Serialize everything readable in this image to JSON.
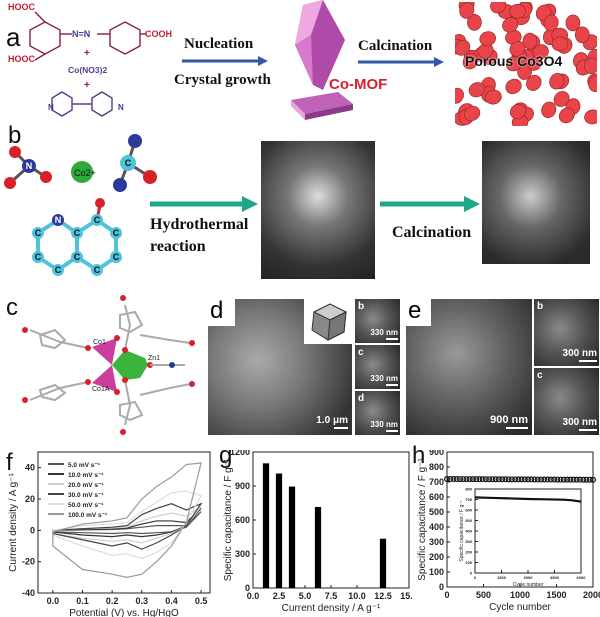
{
  "panels": {
    "a": {
      "label": "a",
      "reactant1_labels": [
        "HOOC",
        "HOOC",
        "COOH",
        "N=N"
      ],
      "plus": "+",
      "reactant2": "Co(NO3)2",
      "reactant3_atoms": [
        "N",
        "N"
      ],
      "step1_top": "Nucleation",
      "step1_bottom": "Crystal growth",
      "intermediate": "Co-MOF",
      "step2": "Calcination",
      "product": "Porous Co3O4",
      "colors": {
        "arrow": "#2e5aa8",
        "text_red": "#d8202a",
        "crystal": "#b04aa8",
        "particles": "#e8444a"
      }
    },
    "b": {
      "label": "b",
      "ion": "Co2+",
      "atom": "C",
      "atom_n": "N",
      "atom_o": "O",
      "step1_line1": "Hydrothermal",
      "step1_line2": "reaction",
      "step2": "Calcination",
      "colors": {
        "arrow": "#1ea88a",
        "carbon": "#4fc3dc",
        "nitrogen": "#2b3a9a",
        "oxygen": "#d8202a",
        "cobalt": "#2faa3a"
      }
    },
    "c": {
      "label": "c",
      "atoms": [
        "Co1",
        "Zn1",
        "Co1A"
      ],
      "colors": {
        "co": "#cc3d9e",
        "zn": "#3ab43a",
        "o": "#d8202a"
      }
    },
    "d": {
      "label": "d",
      "scale_main": "1.0 μm",
      "insets": [
        {
          "label": "b",
          "scale": "330 nm"
        },
        {
          "label": "c",
          "scale": "330 nm"
        },
        {
          "label": "d",
          "scale": "330 nm"
        }
      ]
    },
    "e": {
      "label": "e",
      "scale_main": "900 nm",
      "insets": [
        {
          "label": "b",
          "scale": "300 nm"
        },
        {
          "label": "c",
          "scale": "300 nm"
        }
      ]
    },
    "f": {
      "label": "f"
    },
    "g": {
      "label": "g"
    },
    "h": {
      "label": "h"
    }
  },
  "chart_data": [
    {
      "panel": "f",
      "type": "line",
      "xlabel": "Potential (V) vs. Hg/HgO",
      "ylabel": "Current density / A g⁻¹",
      "xlim": [
        -0.05,
        0.53
      ],
      "ylim": [
        -40,
        50
      ],
      "xticks": [
        "0.0",
        "0.1",
        "0.2",
        "0.3",
        "0.4",
        "0.5"
      ],
      "yticks": [
        "-40",
        "-20",
        "0",
        "20",
        "40"
      ],
      "legend_position": "top-left",
      "x": [
        0,
        0.1,
        0.2,
        0.25,
        0.3,
        0.35,
        0.4,
        0.45,
        0.5
      ],
      "series": [
        {
          "name": "5.0  mV s⁻¹",
          "color": "#555555",
          "anodic": [
            0,
            0.3,
            0.5,
            1,
            2,
            3,
            3,
            3,
            12
          ],
          "cathodic": [
            -1,
            -1.5,
            -2,
            -1.5,
            -2,
            -1.5,
            -1,
            2,
            12
          ]
        },
        {
          "name": "10.0  mV s⁻¹",
          "color": "#333333",
          "anodic": [
            0,
            0.5,
            1,
            1.5,
            4,
            6,
            6,
            5,
            14
          ],
          "cathodic": [
            -1,
            -3,
            -4,
            -3,
            -4,
            -3,
            -1,
            3,
            14
          ]
        },
        {
          "name": "20.0  mV s⁻¹",
          "color": "#cfcfcf",
          "anodic": [
            0,
            1,
            1.5,
            2,
            6,
            9,
            11,
            9,
            15
          ],
          "cathodic": [
            -2,
            -5,
            -7,
            -6,
            -8,
            -5,
            -2,
            3,
            15
          ]
        },
        {
          "name": "30.0  mV s⁻¹",
          "color": "#444444",
          "anodic": [
            0,
            1,
            2,
            3,
            10,
            14,
            17,
            13,
            17
          ],
          "cathodic": [
            -2,
            -6,
            -10,
            -8,
            -12,
            -8,
            -3,
            3,
            17
          ]
        },
        {
          "name": "50.0  mV s⁻¹",
          "color": "#dddddd",
          "anodic": [
            0,
            3,
            4,
            5,
            12,
            18,
            24,
            25,
            22
          ],
          "cathodic": [
            -3,
            -10,
            -16,
            -15,
            -18,
            -14,
            -8,
            5,
            22
          ]
        },
        {
          "name": "100.0  mV s⁻¹",
          "color": "#999999",
          "anodic": [
            -1,
            4,
            6,
            8,
            20,
            28,
            34,
            42,
            43
          ],
          "cathodic": [
            -10,
            -25,
            -28,
            -30,
            -28,
            -20,
            -10,
            5,
            43
          ]
        }
      ]
    },
    {
      "panel": "g",
      "type": "bar",
      "xlabel": "Current density / A g⁻¹",
      "ylabel": "Specific capacitance / F g⁻¹",
      "xlim": [
        0,
        15
      ],
      "ylim": [
        0,
        1200
      ],
      "xticks": [
        "0.0",
        "2.5",
        "5.0",
        "7.5",
        "10.0",
        "12.5",
        "15.0"
      ],
      "yticks": [
        "0",
        "300",
        "600",
        "900",
        "1200"
      ],
      "x": [
        1.25,
        2.5,
        3.75,
        6.25,
        12.5
      ],
      "values": [
        1100,
        1010,
        895,
        715,
        435
      ],
      "color": "#000000"
    },
    {
      "panel": "h",
      "type": "scatter",
      "xlabel": "Cycle number",
      "ylabel": "Specific capacitance / F g⁻¹",
      "xlim": [
        0,
        2000
      ],
      "ylim": [
        0,
        900
      ],
      "xticks": [
        "0",
        "500",
        "1000",
        "1500",
        "2000"
      ],
      "yticks": [
        "0",
        "100",
        "200",
        "300",
        "400",
        "500",
        "600",
        "700",
        "800",
        "900"
      ],
      "points": {
        "x_start": 0,
        "x_end": 2000,
        "value_start": 720,
        "value_end": 715
      },
      "inset": {
        "type": "line",
        "xlabel": "Cycle number",
        "ylabel": "Specific capacitance / F g⁻¹",
        "xlim": [
          0,
          6000
        ],
        "ylim": [
          0,
          800
        ],
        "xticks": [
          "0",
          "1500",
          "3000",
          "4500",
          "6000"
        ],
        "yticks": [
          "0",
          "100",
          "200",
          "300",
          "400",
          "500",
          "600",
          "700",
          "800"
        ],
        "x": [
          0,
          1000,
          2000,
          3000,
          4000,
          5000,
          5500,
          6000
        ],
        "values": [
          720,
          715,
          710,
          705,
          702,
          698,
          692,
          680
        ]
      }
    }
  ]
}
